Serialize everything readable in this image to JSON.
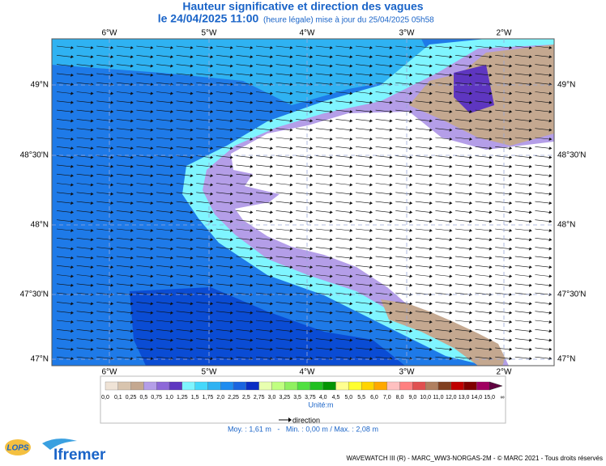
{
  "header": {
    "title": "Hauteur significative et direction des vagues",
    "date": "le 24/04/2025 11:00",
    "update": "(heure légale) mise à jour du 25/04/2025 05h58"
  },
  "map": {
    "longitudes": [
      "6°W",
      "5°W",
      "4°W",
      "3°W",
      "2°W"
    ],
    "latitudes": [
      "49°N",
      "48°30'N",
      "48°N",
      "47°30'N",
      "47°N"
    ]
  },
  "legend": {
    "labels": [
      "0,0",
      "0,1",
      "0,25",
      "0,5",
      "0,75",
      "1,0",
      "1,25",
      "1,5",
      "1,75",
      "2,0",
      "2,25",
      "2,5",
      "2,75",
      "3,0",
      "3,25",
      "3,5",
      "3,75",
      "4,0",
      "4,5",
      "5,0",
      "5,5",
      "6,0",
      "7,0",
      "8,0",
      "9,0",
      "10,0",
      "11,0",
      "12,0",
      "13,0",
      "14,0",
      "15,0",
      "∞"
    ],
    "colors": [
      "#efe3d6",
      "#d8c4ae",
      "#c4a890",
      "#b49ee8",
      "#8d68d8",
      "#5e36c0",
      "#7ff5ff",
      "#45d8fb",
      "#2fb2f2",
      "#1e8cf0",
      "#1a64e0",
      "#0a2cc4",
      "#e8ffb0",
      "#c0ff80",
      "#90f060",
      "#50e040",
      "#20c020",
      "#049404",
      "#ffff90",
      "#ffff30",
      "#ffd400",
      "#ffa800",
      "#ffc0c0",
      "#ff8080",
      "#e05050",
      "#b08060",
      "#804020",
      "#c00000",
      "#800000",
      "#a00060",
      "#600040"
    ],
    "unit": "Unité:m",
    "direction": "direction"
  },
  "stats": "Moy. : 1,61 m   -   Min. : 0,00 m / Max. : 2,08 m",
  "logos": {
    "lops": "LOPS",
    "ifremer": "Ifremer"
  },
  "footer": "WAVEWATCH III (R) - MARC_WW3-NORGAS-2M - © MARC 2021 - Tous droits réservés"
}
